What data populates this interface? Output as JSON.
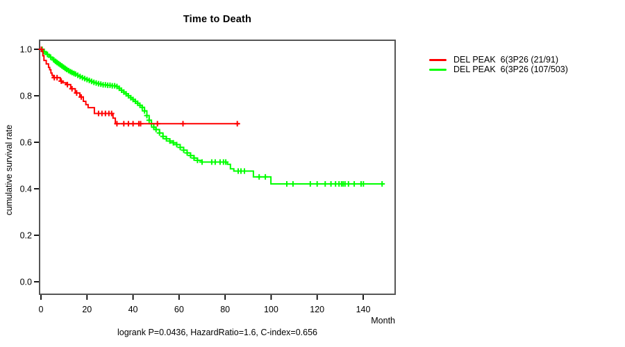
{
  "chart_data": {
    "type": "line",
    "chart_kind": "kaplan_meier_step",
    "title": "Time to Death",
    "xlabel": "Month",
    "ylabel": "cumulative survival rate",
    "footnote": "logrank P=0.0436, HazardRatio=1.6, C-index=0.656",
    "xlim": [
      0,
      154
    ],
    "ylim": [
      0.0,
      1.0
    ],
    "xticks": [
      "0",
      "20",
      "40",
      "60",
      "80",
      "100",
      "120",
      "140"
    ],
    "yticks": [
      "0.0",
      "0.2",
      "0.4",
      "0.6",
      "0.8",
      "1.0"
    ],
    "grid": false,
    "legend_position": "right-outside",
    "frame_color": "#555555",
    "tick_color": "#000000",
    "series": [
      {
        "name": "DEL PEAK  6(3P26 (21/91)",
        "color": "#ff0000",
        "end_month": 86.3,
        "steps": [
          [
            0,
            1.0
          ],
          [
            0.3,
            0.992
          ],
          [
            0.8,
            0.972
          ],
          [
            1.3,
            0.952
          ],
          [
            2.3,
            0.937
          ],
          [
            3.3,
            0.922
          ],
          [
            3.8,
            0.912
          ],
          [
            4.3,
            0.898
          ],
          [
            4.8,
            0.888
          ],
          [
            5.3,
            0.878
          ],
          [
            8.4,
            0.863
          ],
          [
            9.4,
            0.856
          ],
          [
            10.9,
            0.848
          ],
          [
            12.9,
            0.83
          ],
          [
            14.9,
            0.812
          ],
          [
            16.9,
            0.795
          ],
          [
            18.4,
            0.776
          ],
          [
            19.5,
            0.762
          ],
          [
            20.5,
            0.749
          ],
          [
            23.2,
            0.724
          ],
          [
            31.3,
            0.704
          ],
          [
            32.3,
            0.68
          ]
        ],
        "censor_months": [
          0.15,
          5.8,
          7.0,
          8.8,
          11.5,
          13.5,
          15.5,
          17.5,
          25,
          26.5,
          28,
          29.5,
          30.7,
          33,
          36,
          38,
          40,
          42.5,
          43.3,
          50.6,
          61.7,
          85.3
        ]
      },
      {
        "name": "DEL PEAK  6(3P26 (107/503)",
        "color": "#00ff00",
        "end_month": 148.5,
        "steps": [
          [
            0,
            1.0
          ],
          [
            0.7,
            0.995
          ],
          [
            1.4,
            0.99
          ],
          [
            2.1,
            0.984
          ],
          [
            2.8,
            0.978
          ],
          [
            3.5,
            0.972
          ],
          [
            4.2,
            0.966
          ],
          [
            4.9,
            0.96
          ],
          [
            5.6,
            0.954
          ],
          [
            6.3,
            0.948
          ],
          [
            7,
            0.943
          ],
          [
            7.7,
            0.938
          ],
          [
            8.4,
            0.933
          ],
          [
            9.1,
            0.928
          ],
          [
            9.8,
            0.923
          ],
          [
            10.5,
            0.918
          ],
          [
            11.2,
            0.913
          ],
          [
            12,
            0.908
          ],
          [
            12.8,
            0.904
          ],
          [
            13.5,
            0.9
          ],
          [
            14.3,
            0.896
          ],
          [
            15,
            0.893
          ],
          [
            16,
            0.888
          ],
          [
            17,
            0.883
          ],
          [
            18,
            0.878
          ],
          [
            19,
            0.874
          ],
          [
            20,
            0.87
          ],
          [
            21,
            0.866
          ],
          [
            22,
            0.862
          ],
          [
            23,
            0.858
          ],
          [
            24,
            0.855
          ],
          [
            25,
            0.852
          ],
          [
            26,
            0.85
          ],
          [
            27,
            0.847
          ],
          [
            29,
            0.845
          ],
          [
            31,
            0.843
          ],
          [
            33,
            0.84
          ],
          [
            34,
            0.832
          ],
          [
            35,
            0.824
          ],
          [
            36,
            0.816
          ],
          [
            37,
            0.808
          ],
          [
            38,
            0.8
          ],
          [
            39,
            0.792
          ],
          [
            40,
            0.784
          ],
          [
            41,
            0.776
          ],
          [
            42,
            0.768
          ],
          [
            43,
            0.759
          ],
          [
            44,
            0.75
          ],
          [
            45,
            0.735
          ],
          [
            46,
            0.715
          ],
          [
            47,
            0.695
          ],
          [
            48,
            0.68
          ],
          [
            49,
            0.665
          ],
          [
            50,
            0.655
          ],
          [
            51.5,
            0.64
          ],
          [
            53,
            0.625
          ],
          [
            54.5,
            0.615
          ],
          [
            56,
            0.605
          ],
          [
            57.5,
            0.598
          ],
          [
            59,
            0.59
          ],
          [
            60.5,
            0.578
          ],
          [
            62,
            0.566
          ],
          [
            63.5,
            0.554
          ],
          [
            65,
            0.543
          ],
          [
            66.5,
            0.532
          ],
          [
            68,
            0.522
          ],
          [
            70,
            0.515
          ],
          [
            81,
            0.505
          ],
          [
            82.3,
            0.486
          ],
          [
            83.8,
            0.476
          ],
          [
            92.3,
            0.451
          ],
          [
            99.9,
            0.421
          ]
        ],
        "censor_months": [
          0.5,
          1.4,
          2.8,
          4.2,
          5.6,
          6.3,
          7,
          7.7,
          8.4,
          9.1,
          9.8,
          10.5,
          11.2,
          12,
          12.8,
          13.5,
          14.3,
          15,
          16,
          17,
          18,
          19,
          20,
          21,
          22,
          23,
          24,
          25,
          26,
          27,
          28,
          29,
          30,
          31,
          32,
          33,
          34,
          35,
          36,
          37,
          38,
          39,
          40,
          41,
          42,
          43,
          44,
          45,
          46,
          47,
          48,
          49,
          50,
          51.5,
          53,
          54.5,
          56,
          57.5,
          59,
          60.5,
          62,
          63.5,
          65,
          66.5,
          68,
          70,
          74.2,
          75.7,
          77.8,
          79.3,
          80.3,
          85.7,
          86.9,
          88.4,
          94.8,
          97.5,
          106.8,
          109.5,
          117,
          120,
          123.5,
          126,
          128,
          129.5,
          130.6,
          131.3,
          132.1,
          133.6,
          136.1,
          139.1,
          140.1,
          148.2
        ]
      }
    ]
  }
}
